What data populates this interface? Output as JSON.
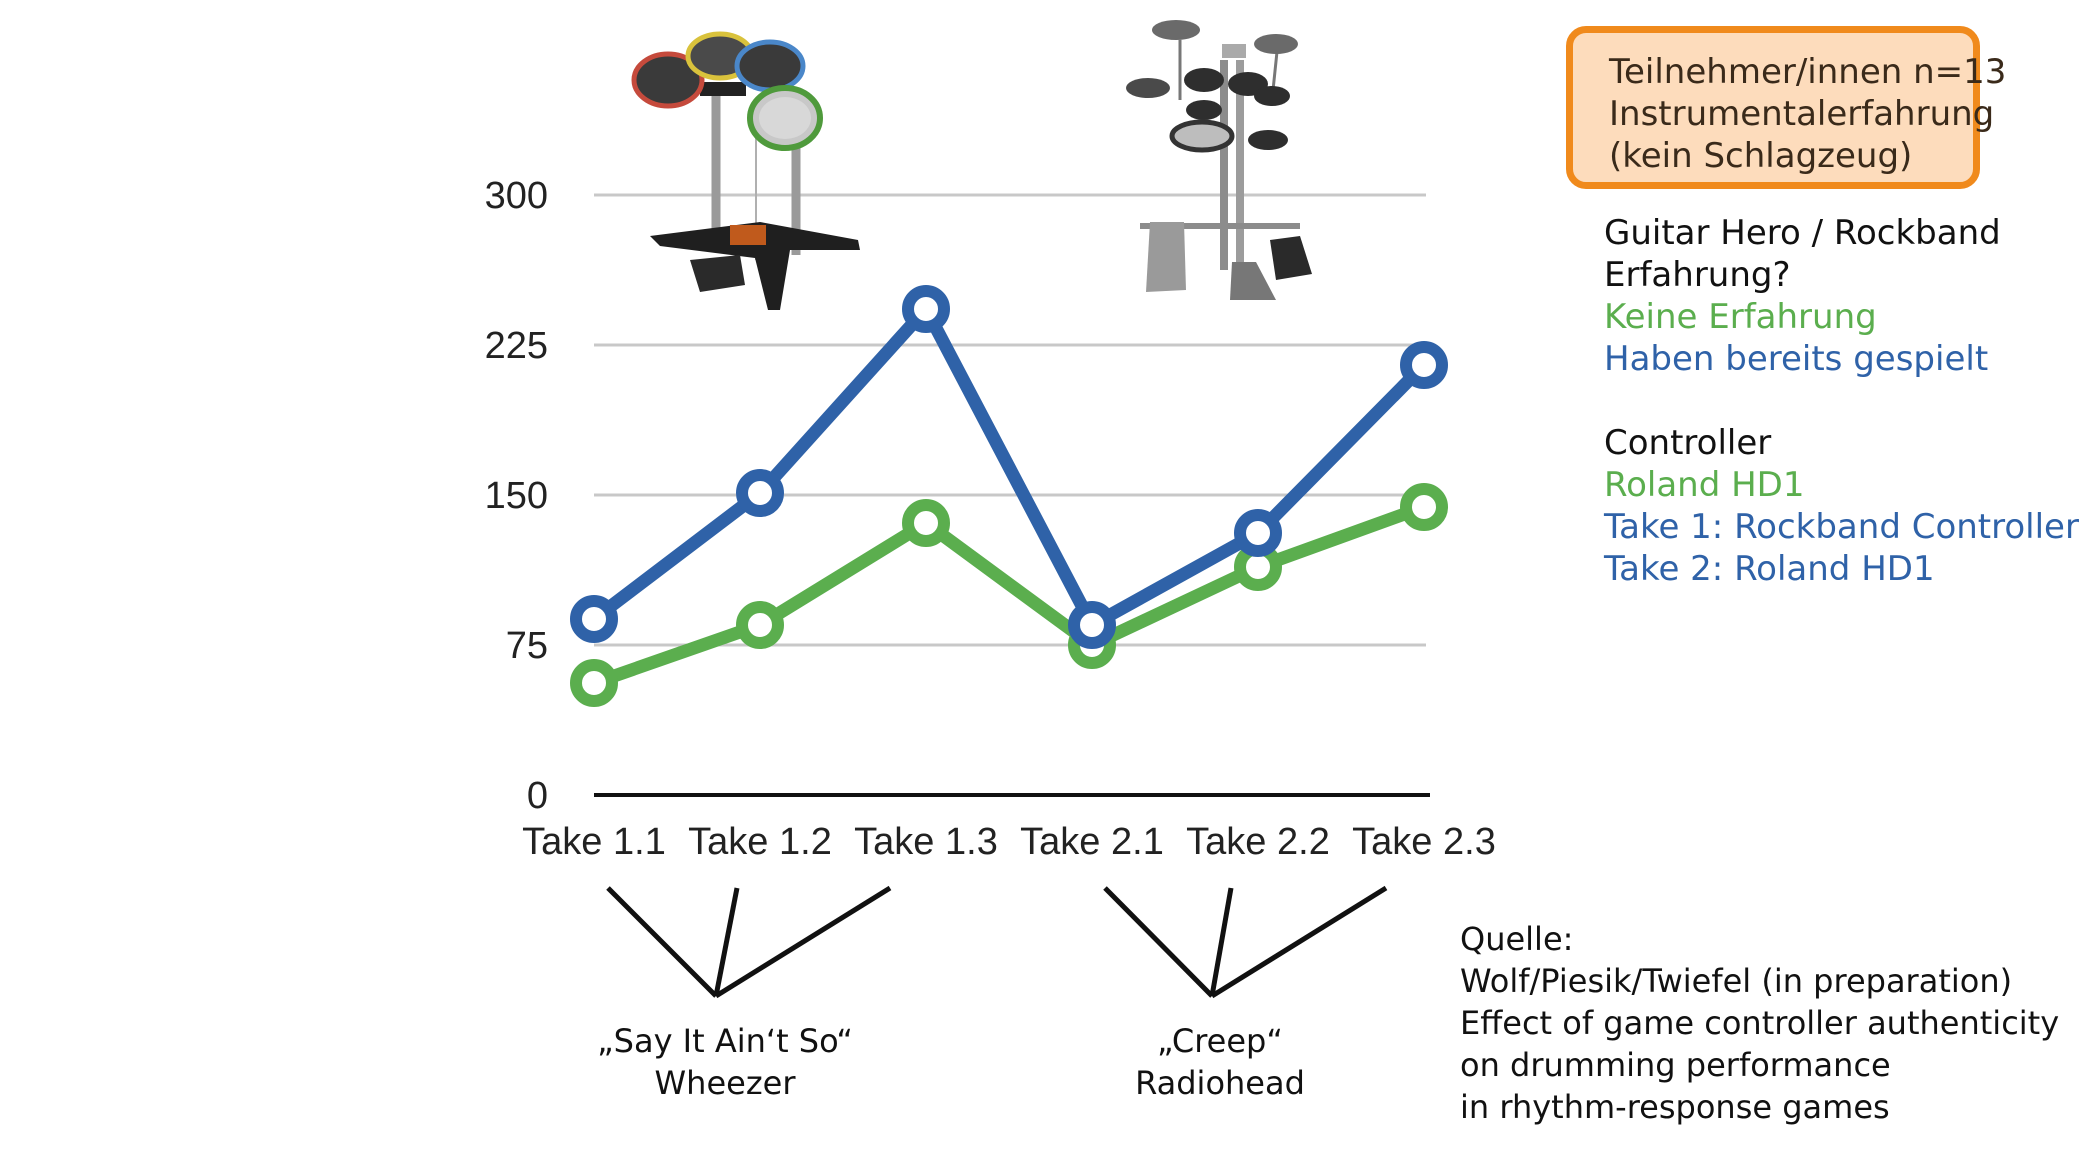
{
  "chart_data": {
    "type": "line",
    "categories": [
      "Take 1.1",
      "Take 1.2",
      "Take 1.3",
      "Take 2.1",
      "Take 2.2",
      "Take 2.3"
    ],
    "series": [
      {
        "name": "Haben bereits gespielt",
        "color": "#2F62A8",
        "values": [
          88,
          151,
          243,
          85,
          131,
          215
        ]
      },
      {
        "name": "Keine Erfahrung",
        "color": "#5BAE4E",
        "values": [
          56,
          85,
          136,
          75,
          114,
          144
        ]
      }
    ],
    "yticks": [
      0,
      75,
      150,
      225,
      300
    ],
    "ylim": [
      0,
      300
    ],
    "grid": true,
    "title": "",
    "xlabel": "",
    "ylabel": ""
  },
  "info_box": {
    "lines": [
      "Teilnehmer/innen n=13",
      "Instrumentalerfahrung",
      "(kein Schlagzeug)"
    ]
  },
  "legend": {
    "question_line1": "Guitar Hero / Rockband",
    "question_line2": "Erfahrung?",
    "green_label": "Keine Erfahrung",
    "blue_label": "Haben bereits gespielt",
    "controller_title": "Controller",
    "controller_green": "Roland HD1",
    "controller_take1": "Take 1: Rockband Controller",
    "controller_take2": "Take 2: Roland HD1"
  },
  "songs": [
    {
      "title": "„Say It Ain‘t So“",
      "artist": "Wheezer"
    },
    {
      "title": "„Creep“",
      "artist": "Radiohead"
    }
  ],
  "source": {
    "lines": [
      "Quelle:",
      "Wolf/Piesik/Twiefel (in preparation)",
      "Effect of game controller authenticity",
      "on drumming performance",
      "in rhythm-response games"
    ]
  },
  "images": {
    "left": "rockband-drum-controller-image",
    "right": "roland-hd1-electronic-drum-kit-image"
  },
  "colors": {
    "blue": "#2F62A8",
    "green": "#5BAE4E",
    "box_border": "#F08A1C",
    "box_fill": "#FDDCBC"
  }
}
